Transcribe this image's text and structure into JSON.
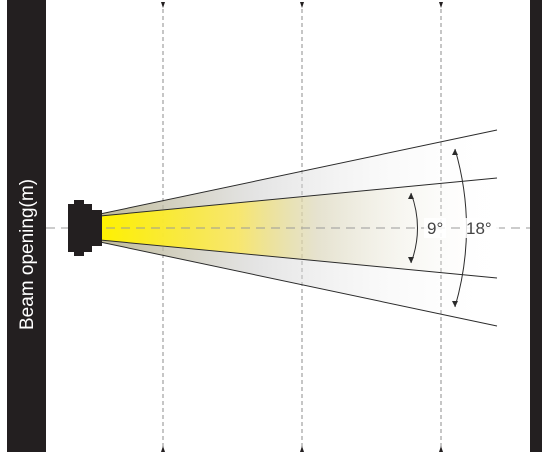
{
  "diagram": {
    "side_label": "Beam opening(m)",
    "inner_angle_label": "9°",
    "outer_angle_label": "18°",
    "colors": {
      "bar": "#231f20",
      "beam_core": "#ffec00",
      "beam_fade": "#ffffff",
      "guide_line": "#8c8c8c",
      "ray": "#2b2b2b"
    }
  }
}
